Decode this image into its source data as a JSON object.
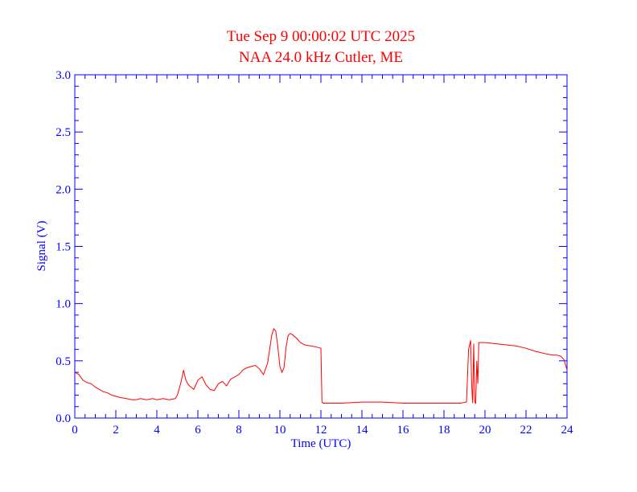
{
  "chart_data": {
    "type": "line",
    "title": "Tue Sep 9 00:00:02 UTC 2025",
    "subtitle": "NAA 24.0 kHz Cutler, ME",
    "xlabel": "Time (UTC)",
    "ylabel": "Signal (V)",
    "xlim": [
      0,
      24
    ],
    "ylim": [
      0,
      3.0
    ],
    "x_ticks": [
      0,
      2,
      4,
      6,
      8,
      10,
      12,
      14,
      16,
      18,
      20,
      22,
      24
    ],
    "y_ticks": [
      "0.0",
      "0.5",
      "1.0",
      "1.5",
      "2.0",
      "2.5",
      "3.0"
    ],
    "grid": false,
    "legend": "none",
    "series": [
      {
        "color": "#ff0000",
        "x": [
          0.0,
          0.2,
          0.4,
          0.6,
          0.8,
          1.0,
          1.2,
          1.4,
          1.6,
          1.8,
          2.0,
          2.2,
          2.5,
          2.8,
          3.0,
          3.2,
          3.5,
          3.8,
          4.0,
          4.3,
          4.6,
          4.9,
          5.0,
          5.1,
          5.2,
          5.3,
          5.4,
          5.5,
          5.6,
          5.8,
          6.0,
          6.2,
          6.4,
          6.6,
          6.8,
          7.0,
          7.2,
          7.4,
          7.6,
          7.8,
          8.0,
          8.2,
          8.4,
          8.6,
          8.8,
          9.0,
          9.2,
          9.4,
          9.6,
          9.7,
          9.8,
          9.9,
          10.0,
          10.1,
          10.2,
          10.3,
          10.4,
          10.5,
          10.6,
          10.8,
          11.0,
          11.2,
          11.5,
          11.8,
          12.0,
          12.05,
          12.1,
          12.5,
          13.0,
          14.0,
          15.0,
          16.0,
          17.0,
          18.0,
          18.8,
          19.1,
          19.2,
          19.3,
          19.35,
          19.4,
          19.45,
          19.5,
          19.55,
          19.6,
          19.65,
          19.7,
          20.0,
          20.5,
          21.0,
          21.5,
          22.0,
          22.5,
          23.0,
          23.3,
          23.5,
          23.7,
          23.85,
          24.0
        ],
        "y": [
          0.4,
          0.38,
          0.33,
          0.31,
          0.3,
          0.27,
          0.25,
          0.23,
          0.22,
          0.2,
          0.19,
          0.18,
          0.17,
          0.16,
          0.16,
          0.17,
          0.16,
          0.17,
          0.16,
          0.17,
          0.16,
          0.17,
          0.2,
          0.26,
          0.33,
          0.42,
          0.34,
          0.3,
          0.28,
          0.25,
          0.33,
          0.36,
          0.29,
          0.25,
          0.24,
          0.3,
          0.32,
          0.28,
          0.34,
          0.36,
          0.38,
          0.42,
          0.44,
          0.45,
          0.46,
          0.43,
          0.38,
          0.48,
          0.72,
          0.78,
          0.76,
          0.62,
          0.45,
          0.4,
          0.44,
          0.62,
          0.72,
          0.74,
          0.73,
          0.7,
          0.66,
          0.64,
          0.63,
          0.62,
          0.61,
          0.14,
          0.13,
          0.13,
          0.13,
          0.14,
          0.14,
          0.13,
          0.13,
          0.13,
          0.13,
          0.14,
          0.6,
          0.68,
          0.3,
          0.13,
          0.65,
          0.14,
          0.13,
          0.5,
          0.3,
          0.66,
          0.66,
          0.65,
          0.64,
          0.63,
          0.61,
          0.58,
          0.56,
          0.55,
          0.55,
          0.54,
          0.51,
          0.42
        ]
      }
    ]
  }
}
